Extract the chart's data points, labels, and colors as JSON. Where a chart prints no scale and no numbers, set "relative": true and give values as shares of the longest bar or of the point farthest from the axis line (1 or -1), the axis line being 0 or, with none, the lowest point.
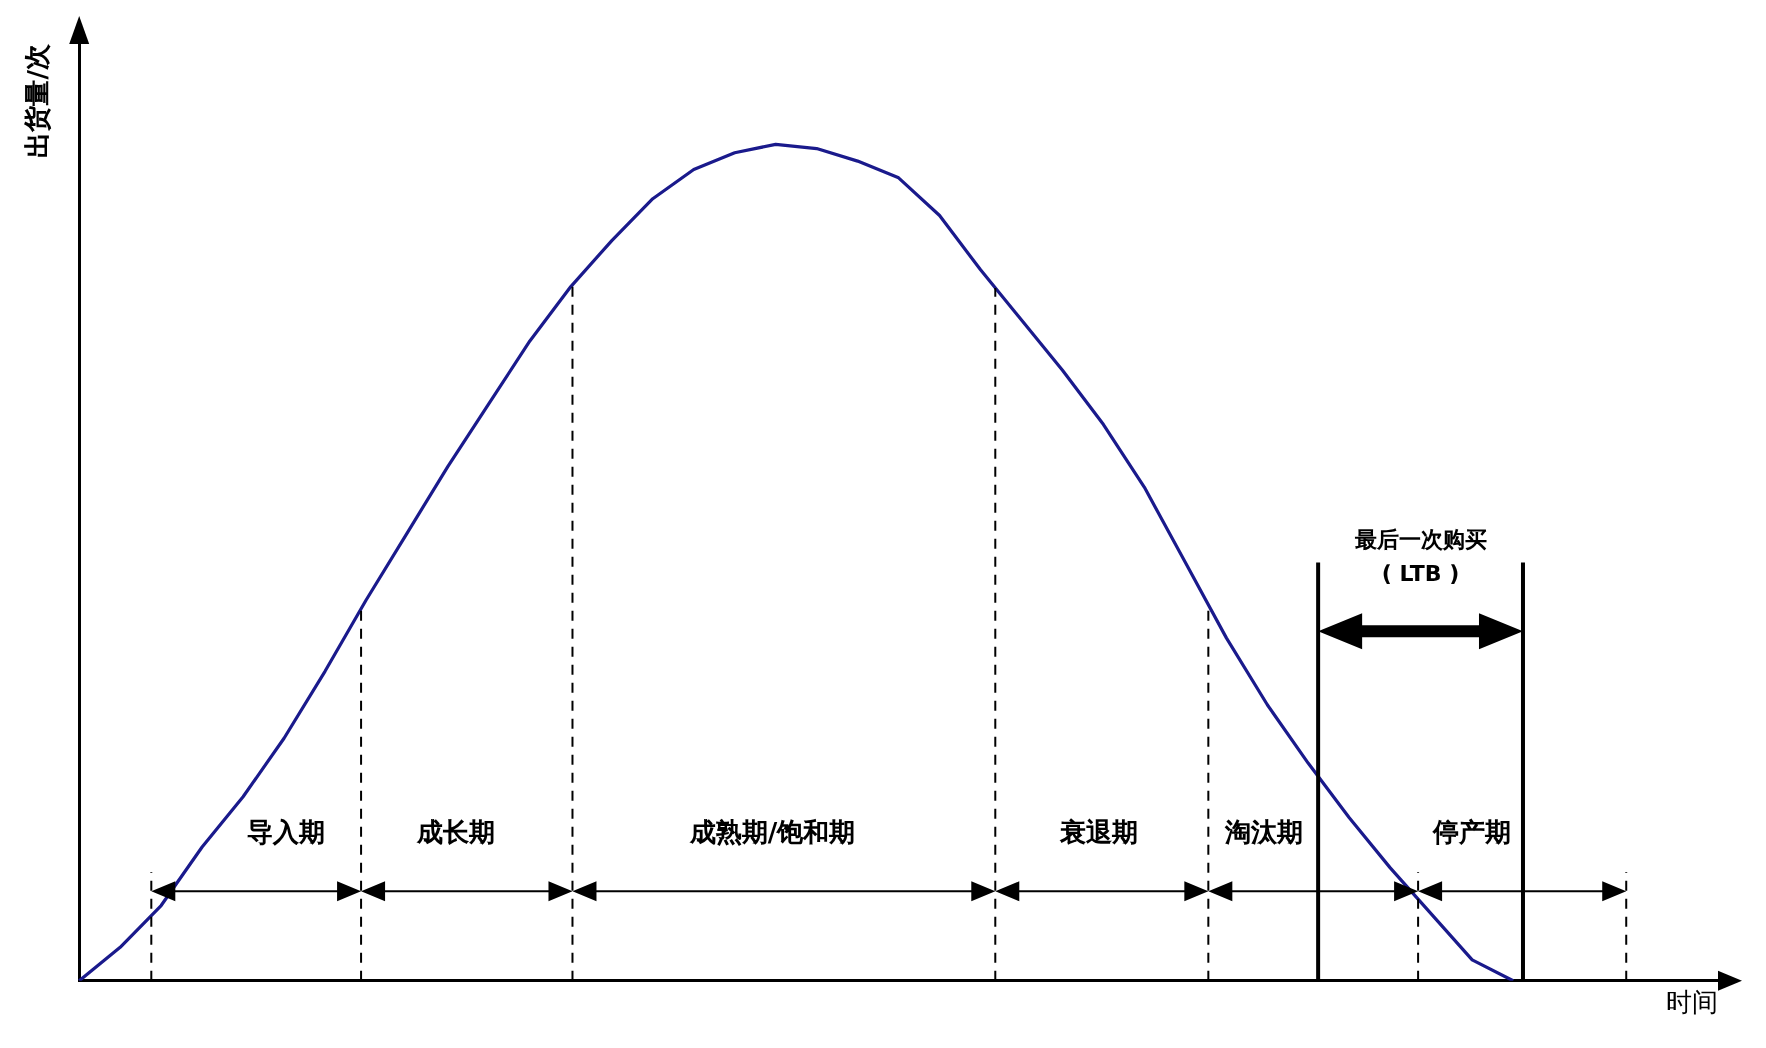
{
  "chart_data": {
    "type": "line",
    "relative": true,
    "xlabel": "时间",
    "ylabel": "出货量/次",
    "categories": [
      null,
      null,
      null,
      null,
      null,
      null,
      null,
      null,
      null,
      null,
      null,
      null,
      null,
      null,
      null,
      null,
      null,
      null,
      null,
      null,
      null,
      null,
      null,
      null,
      null,
      null,
      null,
      null,
      null,
      null,
      null,
      null,
      null,
      null,
      null,
      null,
      null,
      null,
      null,
      null,
      null
    ],
    "values": [
      0,
      0.04,
      0.09,
      0.16,
      0.22,
      0.29,
      0.37,
      0.455,
      0.535,
      0.615,
      0.69,
      0.765,
      0.83,
      0.885,
      0.935,
      0.97,
      0.99,
      1,
      0.995,
      0.98,
      0.96,
      0.915,
      0.85,
      0.79,
      0.73,
      0.665,
      0.59,
      0.5,
      0.41,
      0.33,
      0.26,
      0.195,
      0.135,
      0.08,
      0.025,
      0,
      null,
      null,
      null,
      null,
      null
    ],
    "color": "#1a1a8c",
    "legend": false,
    "annotations": [
      "导入期",
      "成长期",
      "成熟期/饱和期",
      "衰退期",
      "淘汰期",
      "停产期",
      "最后一次购买",
      "( LTB )"
    ]
  }
}
